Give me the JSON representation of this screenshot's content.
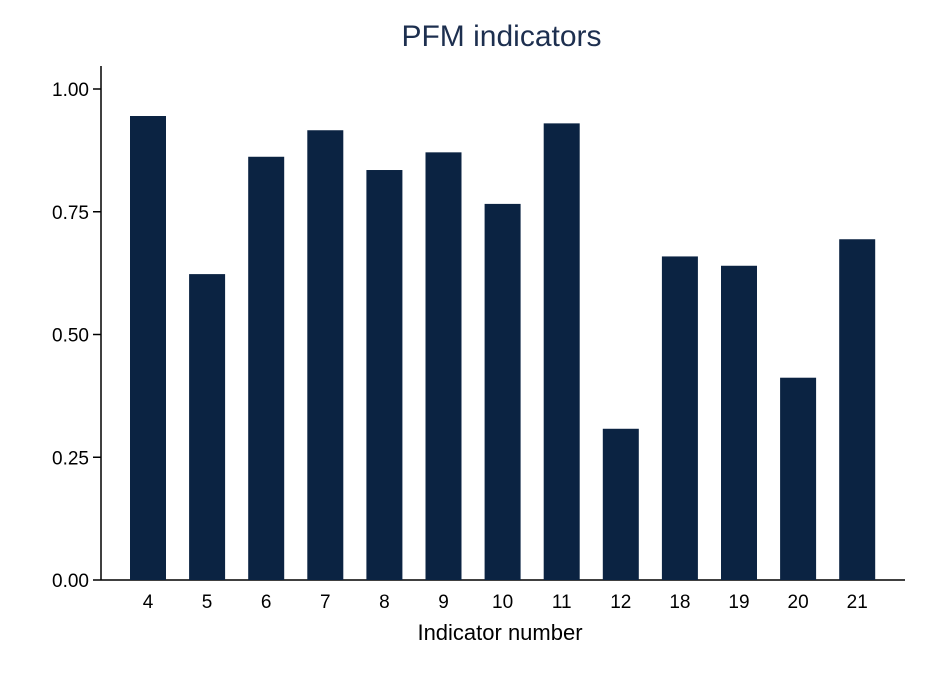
{
  "chart_data": {
    "type": "bar",
    "title": "PFM indicators",
    "xlabel": "Indicator number",
    "ylabel": "",
    "categories": [
      "4",
      "5",
      "6",
      "7",
      "8",
      "9",
      "10",
      "11",
      "12",
      "18",
      "19",
      "20",
      "21"
    ],
    "values": [
      0.945,
      0.623,
      0.862,
      0.916,
      0.835,
      0.871,
      0.766,
      0.93,
      0.308,
      0.659,
      0.64,
      0.412,
      0.694
    ],
    "ylim": [
      0,
      1.05
    ],
    "yticks": [
      "0.00",
      "0.25",
      "0.50",
      "0.75",
      "1.00"
    ],
    "grid": false,
    "legend": "none",
    "colors": {
      "bar": "#0b2342",
      "title": "#1d2f4f",
      "axis": "#000000"
    }
  }
}
